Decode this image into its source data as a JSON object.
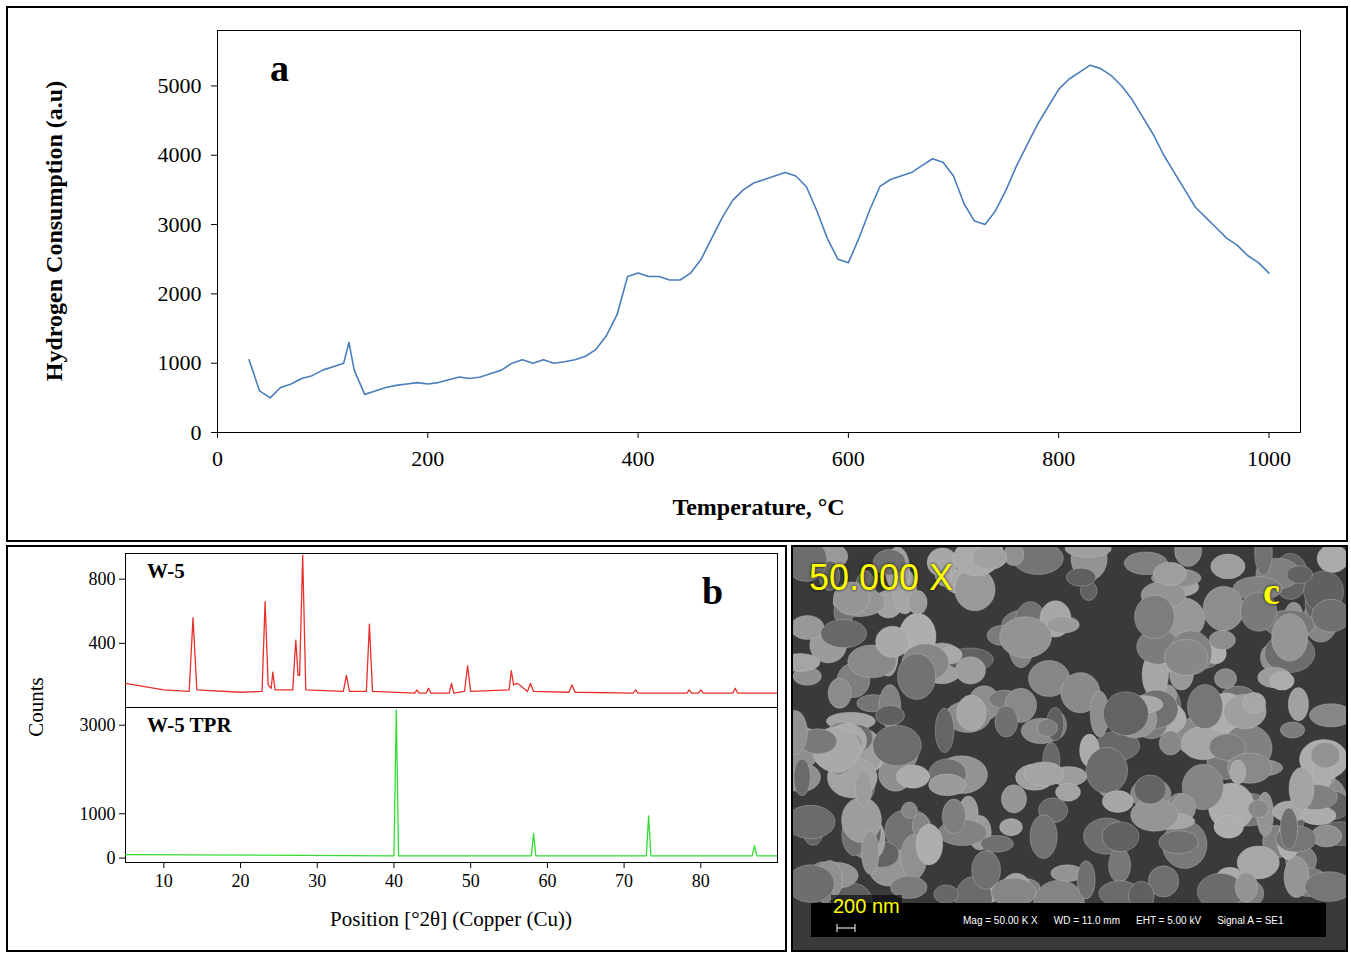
{
  "chart_data": [
    {
      "panel": "a",
      "type": "line",
      "color": "#4a7ebb",
      "xlabel": "Temperature, °C",
      "ylabel": "Hydrogen Consumption (a.u)",
      "xlim": [
        0,
        1030
      ],
      "ylim": [
        0,
        5800
      ],
      "xticks": [
        0,
        200,
        400,
        600,
        800,
        1000
      ],
      "yticks": [
        0,
        1000,
        2000,
        3000,
        4000,
        5000
      ],
      "x": [
        30,
        40,
        50,
        60,
        70,
        80,
        90,
        100,
        110,
        120,
        125,
        130,
        140,
        150,
        160,
        170,
        180,
        190,
        200,
        210,
        220,
        230,
        240,
        250,
        260,
        270,
        280,
        290,
        300,
        310,
        320,
        330,
        340,
        350,
        360,
        370,
        380,
        390,
        400,
        410,
        420,
        430,
        440,
        450,
        460,
        470,
        480,
        490,
        500,
        510,
        520,
        530,
        540,
        550,
        560,
        570,
        580,
        590,
        600,
        610,
        620,
        630,
        640,
        650,
        660,
        670,
        680,
        690,
        700,
        710,
        720,
        730,
        740,
        750,
        760,
        770,
        780,
        790,
        800,
        810,
        820,
        830,
        840,
        850,
        860,
        870,
        880,
        890,
        900,
        910,
        920,
        930,
        940,
        950,
        960,
        970,
        980,
        990,
        1000
      ],
      "values": [
        1050,
        600,
        500,
        650,
        700,
        780,
        820,
        900,
        950,
        1000,
        1300,
        900,
        550,
        600,
        650,
        680,
        700,
        720,
        700,
        720,
        760,
        800,
        780,
        800,
        850,
        900,
        1000,
        1050,
        1000,
        1050,
        1000,
        1020,
        1050,
        1100,
        1200,
        1400,
        1700,
        2250,
        2300,
        2250,
        2250,
        2200,
        2200,
        2300,
        2500,
        2800,
        3100,
        3350,
        3500,
        3600,
        3650,
        3700,
        3750,
        3700,
        3550,
        3200,
        2800,
        2500,
        2450,
        2800,
        3200,
        3550,
        3650,
        3700,
        3750,
        3850,
        3950,
        3900,
        3700,
        3300,
        3050,
        3000,
        3200,
        3500,
        3850,
        4150,
        4450,
        4700,
        4950,
        5100,
        5200,
        5300,
        5250,
        5150,
        5000,
        4800,
        4550,
        4300,
        4000,
        3750,
        3500,
        3250,
        3100,
        2950,
        2800,
        2700,
        2550,
        2450,
        2300
      ]
    },
    {
      "panel": "b",
      "type": "line",
      "xlabel": "Position [°2θ] (Copper (Cu))",
      "ylabel": "Counts",
      "xlim": [
        5,
        90
      ],
      "xticks": [
        10,
        20,
        30,
        40,
        50,
        60,
        70,
        80
      ],
      "subplots": [
        {
          "name": "W-5",
          "color": "#e8302a",
          "ylim": [
            0,
            960
          ],
          "yticks": [
            400,
            800
          ],
          "x": [
            5,
            10,
            13.3,
            13.8,
            14.3,
            20,
            22.8,
            23.2,
            23.6,
            24.0,
            24.2,
            24.5,
            26.8,
            27.2,
            27.5,
            27.7,
            28.1,
            28.5,
            33.4,
            33.8,
            34.2,
            36.4,
            36.8,
            37.2,
            42.7,
            43.0,
            43.3,
            44.2,
            44.5,
            44.8,
            47.2,
            47.5,
            47.8,
            49.2,
            49.6,
            50.0,
            55.0,
            55.3,
            55.6,
            56.0,
            56.4,
            57.4,
            57.8,
            58.2,
            62.8,
            63.2,
            63.6,
            71.2,
            71.5,
            71.8,
            78.2,
            78.5,
            78.8,
            79.7,
            80.0,
            80.3,
            84.2,
            84.5,
            84.8,
            90
          ],
          "values": [
            150,
            110,
            100,
            560,
            110,
            95,
            100,
            660,
            140,
            120,
            220,
            110,
            110,
            420,
            200,
            200,
            950,
            110,
            100,
            200,
            100,
            100,
            520,
            100,
            90,
            110,
            90,
            90,
            120,
            90,
            90,
            150,
            90,
            100,
            260,
            100,
            110,
            230,
            140,
            150,
            140,
            100,
            150,
            100,
            95,
            140,
            95,
            90,
            110,
            90,
            90,
            110,
            90,
            90,
            110,
            90,
            90,
            120,
            90,
            90
          ]
        },
        {
          "name": "W-5 TPR",
          "color": "#33dd33",
          "ylim": [
            -100,
            3400
          ],
          "yticks": [
            0,
            1000,
            3000
          ],
          "x": [
            5,
            40.0,
            40.3,
            40.6,
            57.9,
            58.2,
            58.5,
            72.9,
            73.2,
            73.5,
            86.7,
            87.0,
            87.3,
            90
          ],
          "values": [
            80,
            50,
            3350,
            50,
            50,
            550,
            50,
            50,
            950,
            50,
            50,
            280,
            50,
            50
          ]
        }
      ]
    }
  ],
  "image": {
    "panel": "c",
    "magnification": "50.000 X",
    "scale_bar": "200 nm",
    "info": [
      "Mag = 50.00 K X",
      "WD = 11.0 mm",
      "EHT = 5.00 kV",
      "Signal A = SE1"
    ]
  }
}
